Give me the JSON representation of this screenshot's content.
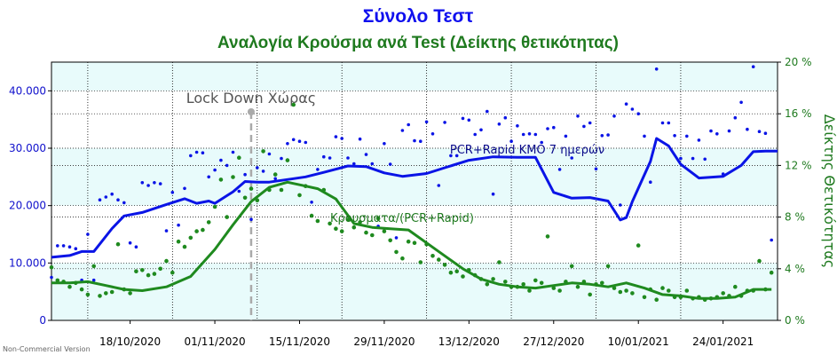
{
  "chart_data": {
    "type": "line",
    "title": "Σύνολο Τεστ",
    "subtitle": "Αναλογία Κρούσμα ανά Test (Δείκτης θετικότητας)",
    "x_range": [
      "2020-10-05",
      "2021-02-02"
    ],
    "x_tick_labels": [
      "18/10/2020",
      "01/11/2020",
      "15/11/2020",
      "29/11/2020",
      "13/12/2020",
      "27/12/2020",
      "10/01/2021",
      "24/01/2021"
    ],
    "y_left": {
      "range": [
        0,
        45000
      ],
      "tick_labels": [
        "0",
        "10.000",
        "20.000",
        "30.000",
        "40.000"
      ],
      "tick_values": [
        0,
        10000,
        20000,
        30000,
        40000
      ]
    },
    "y_right": {
      "label": "Δείκτης Θετικότητας",
      "range": [
        0,
        20
      ],
      "tick_labels": [
        "0 %",
        "4 %",
        "8 %",
        "12 %",
        "16 %",
        "20 %"
      ],
      "tick_values": [
        0,
        4,
        8,
        12,
        16,
        20
      ]
    },
    "grid": true,
    "colors": {
      "tests": "#0a14e6",
      "positivity": "#1f8a1f",
      "lockdown": "#aaaaaa",
      "band": "#e8fbfb"
    },
    "annotations": {
      "lockdown_label": "Lock Down Χώρας",
      "lockdown_date": "2020-11-07",
      "tests_series_label": "PCR+Rapid ΚΜΟ 7 ημερών",
      "positivity_series_label": "Κρουσματα/(PCR+Rapid)"
    },
    "credit": "Non-Commercial Version",
    "series": [
      {
        "axis": "left",
        "kind": "line",
        "dates": [
          "2020-10-05",
          "2020-10-08",
          "2020-10-10",
          "2020-10-12",
          "2020-10-15",
          "2020-10-17",
          "2020-10-20",
          "2020-10-24",
          "2020-10-27",
          "2020-10-29",
          "2020-10-31",
          "2020-11-01",
          "2020-11-04",
          "2020-11-06",
          "2020-11-08",
          "2020-11-10",
          "2020-11-14",
          "2020-11-16",
          "2020-11-19",
          "2020-11-23",
          "2020-11-26",
          "2020-11-29",
          "2020-12-02",
          "2020-12-06",
          "2020-12-09",
          "2020-12-13",
          "2020-12-17",
          "2020-12-21",
          "2020-12-24",
          "2020-12-27",
          "2020-12-30",
          "2021-01-02",
          "2021-01-05",
          "2021-01-07",
          "2021-01-08",
          "2021-01-09",
          "2021-01-12",
          "2021-01-13",
          "2021-01-15",
          "2021-01-17",
          "2021-01-20",
          "2021-01-24",
          "2021-01-27",
          "2021-01-29",
          "2021-01-31",
          "2021-02-02"
        ],
        "values": [
          11000,
          11300,
          12000,
          12000,
          16000,
          18200,
          18800,
          20200,
          21200,
          20400,
          20800,
          20400,
          22400,
          24200,
          24100,
          24100,
          24700,
          25000,
          25800,
          26900,
          26800,
          25700,
          25100,
          25600,
          26600,
          27900,
          28500,
          28400,
          28400,
          22300,
          21300,
          21400,
          20800,
          17500,
          17900,
          20700,
          27700,
          31700,
          30400,
          27200,
          24800,
          25100,
          27000,
          29400,
          29500,
          29500
        ]
      },
      {
        "axis": "right",
        "kind": "line",
        "dates": [
          "2020-10-05",
          "2020-10-08",
          "2020-10-11",
          "2020-10-14",
          "2020-10-17",
          "2020-10-20",
          "2020-10-24",
          "2020-10-28",
          "2020-11-01",
          "2020-11-04",
          "2020-11-07",
          "2020-11-10",
          "2020-11-13",
          "2020-11-15",
          "2020-11-18",
          "2020-11-21",
          "2020-11-24",
          "2020-11-27",
          "2020-11-30",
          "2020-12-03",
          "2020-12-06",
          "2020-12-09",
          "2020-12-12",
          "2020-12-15",
          "2020-12-18",
          "2020-12-21",
          "2020-12-24",
          "2020-12-27",
          "2020-12-30",
          "2021-01-02",
          "2021-01-05",
          "2021-01-08",
          "2021-01-11",
          "2021-01-14",
          "2021-01-17",
          "2021-01-20",
          "2021-01-23",
          "2021-01-26",
          "2021-01-29",
          "2021-02-01"
        ],
        "values": [
          2.9,
          2.9,
          3.0,
          2.7,
          2.4,
          2.3,
          2.6,
          3.4,
          5.5,
          7.4,
          9.2,
          10.3,
          10.7,
          10.5,
          10.2,
          9.4,
          7.5,
          7.2,
          7.1,
          7.0,
          6.0,
          5.0,
          4.0,
          3.2,
          2.8,
          2.6,
          2.5,
          2.7,
          2.9,
          2.8,
          2.6,
          2.9,
          2.5,
          2.0,
          1.9,
          1.7,
          1.7,
          1.8,
          2.4,
          2.4
        ]
      },
      {
        "axis": "left",
        "kind": "scatter",
        "dates": [
          "2020-10-05",
          "2020-10-06",
          "2020-10-07",
          "2020-10-08",
          "2020-10-09",
          "2020-10-10",
          "2020-10-11",
          "2020-10-12",
          "2020-10-13",
          "2020-10-14",
          "2020-10-15",
          "2020-10-16",
          "2020-10-17",
          "2020-10-18",
          "2020-10-19",
          "2020-10-20",
          "2020-10-21",
          "2020-10-22",
          "2020-10-23",
          "2020-10-24",
          "2020-10-25",
          "2020-10-26",
          "2020-10-27",
          "2020-10-28",
          "2020-10-29",
          "2020-10-30",
          "2020-10-31",
          "2020-11-01",
          "2020-11-02",
          "2020-11-03",
          "2020-11-04",
          "2020-11-05",
          "2020-11-06",
          "2020-11-07",
          "2020-11-08",
          "2020-11-09",
          "2020-11-10",
          "2020-11-11",
          "2020-11-12",
          "2020-11-13",
          "2020-11-14",
          "2020-11-15",
          "2020-11-16",
          "2020-11-17",
          "2020-11-18",
          "2020-11-19",
          "2020-11-20",
          "2020-11-21",
          "2020-11-22",
          "2020-11-23",
          "2020-11-24",
          "2020-11-25",
          "2020-11-26",
          "2020-11-27",
          "2020-11-28",
          "2020-11-29",
          "2020-11-30",
          "2020-12-01",
          "2020-12-02",
          "2020-12-03",
          "2020-12-04",
          "2020-12-05",
          "2020-12-06",
          "2020-12-07",
          "2020-12-08",
          "2020-12-09",
          "2020-12-10",
          "2020-12-11",
          "2020-12-12",
          "2020-12-13",
          "2020-12-14",
          "2020-12-15",
          "2020-12-16",
          "2020-12-17",
          "2020-12-18",
          "2020-12-19",
          "2020-12-20",
          "2020-12-21",
          "2020-12-22",
          "2020-12-23",
          "2020-12-24",
          "2020-12-25",
          "2020-12-26",
          "2020-12-27",
          "2020-12-28",
          "2020-12-29",
          "2020-12-30",
          "2020-12-31",
          "2021-01-01",
          "2021-01-02",
          "2021-01-03",
          "2021-01-04",
          "2021-01-05",
          "2021-01-06",
          "2021-01-07",
          "2021-01-08",
          "2021-01-09",
          "2021-01-10",
          "2021-01-11",
          "2021-01-12",
          "2021-01-13",
          "2021-01-14",
          "2021-01-15",
          "2021-01-16",
          "2021-01-17",
          "2021-01-18",
          "2021-01-19",
          "2021-01-20",
          "2021-01-21",
          "2021-01-22",
          "2021-01-23",
          "2021-01-24",
          "2021-01-25",
          "2021-01-26",
          "2021-01-27",
          "2021-01-28",
          "2021-01-29",
          "2021-01-30",
          "2021-01-31",
          "2021-02-01"
        ],
        "values": [
          7500,
          13000,
          13000,
          12800,
          12500,
          7000,
          15000,
          7000,
          21000,
          21500,
          22000,
          21000,
          20500,
          13500,
          12800,
          24000,
          23500,
          24000,
          23800,
          15600,
          22300,
          16600,
          23000,
          28700,
          29300,
          29200,
          25000,
          26200,
          27900,
          27000,
          29300,
          22500,
          25400,
          17600,
          26600,
          26000,
          29000,
          24700,
          28200,
          30800,
          31500,
          31200,
          31000,
          20600,
          26300,
          28500,
          28300,
          32000,
          31700,
          28300,
          27300,
          31600,
          28900,
          27300,
          16400,
          30800,
          27200,
          14400,
          33100,
          34100,
          31300,
          31200,
          34600,
          32500,
          23500,
          34500,
          28700,
          28700,
          35200,
          34900,
          32400,
          33200,
          36400,
          22000,
          34200,
          35300,
          31200,
          33900,
          32400,
          32500,
          32400,
          31000,
          33400,
          33600,
          26300,
          32100,
          28300,
          35600,
          33800,
          34400,
          26400,
          32200,
          32300,
          35600,
          20100,
          37700,
          36800,
          36000,
          32100,
          24100,
          43800,
          34400,
          34400,
          32200,
          28200,
          32100,
          28200,
          31400,
          28100,
          33000,
          32500,
          25500,
          33000,
          35300,
          38000,
          33300,
          44200,
          32900,
          32600,
          14000
        ]
      },
      {
        "axis": "right",
        "kind": "scatter",
        "dates": [
          "2020-10-05",
          "2020-10-06",
          "2020-10-07",
          "2020-10-08",
          "2020-10-09",
          "2020-10-10",
          "2020-10-11",
          "2020-10-12",
          "2020-10-13",
          "2020-10-14",
          "2020-10-15",
          "2020-10-16",
          "2020-10-17",
          "2020-10-18",
          "2020-10-19",
          "2020-10-20",
          "2020-10-21",
          "2020-10-22",
          "2020-10-23",
          "2020-10-24",
          "2020-10-25",
          "2020-10-26",
          "2020-10-27",
          "2020-10-28",
          "2020-10-29",
          "2020-10-30",
          "2020-10-31",
          "2020-11-01",
          "2020-11-02",
          "2020-11-03",
          "2020-11-04",
          "2020-11-05",
          "2020-11-06",
          "2020-11-07",
          "2020-11-08",
          "2020-11-09",
          "2020-11-10",
          "2020-11-11",
          "2020-11-12",
          "2020-11-13",
          "2020-11-14",
          "2020-11-15",
          "2020-11-16",
          "2020-11-17",
          "2020-11-18",
          "2020-11-19",
          "2020-11-20",
          "2020-11-21",
          "2020-11-22",
          "2020-11-23",
          "2020-11-24",
          "2020-11-25",
          "2020-11-26",
          "2020-11-27",
          "2020-11-28",
          "2020-11-29",
          "2020-11-30",
          "2020-12-01",
          "2020-12-02",
          "2020-12-03",
          "2020-12-04",
          "2020-12-05",
          "2020-12-06",
          "2020-12-07",
          "2020-12-08",
          "2020-12-09",
          "2020-12-10",
          "2020-12-11",
          "2020-12-12",
          "2020-12-13",
          "2020-12-14",
          "2020-12-15",
          "2020-12-16",
          "2020-12-17",
          "2020-12-18",
          "2020-12-19",
          "2020-12-20",
          "2020-12-21",
          "2020-12-22",
          "2020-12-23",
          "2020-12-24",
          "2020-12-25",
          "2020-12-26",
          "2020-12-27",
          "2020-12-28",
          "2020-12-29",
          "2020-12-30",
          "2020-12-31",
          "2021-01-01",
          "2021-01-02",
          "2021-01-03",
          "2021-01-04",
          "2021-01-05",
          "2021-01-06",
          "2021-01-07",
          "2021-01-08",
          "2021-01-09",
          "2021-01-10",
          "2021-01-11",
          "2021-01-12",
          "2021-01-13",
          "2021-01-14",
          "2021-01-15",
          "2021-01-16",
          "2021-01-17",
          "2021-01-18",
          "2021-01-19",
          "2021-01-20",
          "2021-01-21",
          "2021-01-22",
          "2021-01-23",
          "2021-01-24",
          "2021-01-25",
          "2021-01-26",
          "2021-01-27",
          "2021-01-28",
          "2021-01-29",
          "2021-01-30",
          "2021-01-31",
          "2021-02-01"
        ],
        "values": [
          4.1,
          3.1,
          3.0,
          2.6,
          2.9,
          2.4,
          2.0,
          4.2,
          1.9,
          2.1,
          2.2,
          5.9,
          2.4,
          2.1,
          3.8,
          3.9,
          3.5,
          3.6,
          4.0,
          4.6,
          3.7,
          6.1,
          5.7,
          6.4,
          6.9,
          7.0,
          7.6,
          8.8,
          10.9,
          8.0,
          11.1,
          12.6,
          9.5,
          10.2,
          9.3,
          13.1,
          10.1,
          11.3,
          10.1,
          12.4,
          16.7,
          9.7,
          10.4,
          8.1,
          7.7,
          10.1,
          7.5,
          7.1,
          6.9,
          7.8,
          7.2,
          7.6,
          6.8,
          6.6,
          7.9,
          6.9,
          6.2,
          5.3,
          4.8,
          6.1,
          6.0,
          4.5,
          5.9,
          5.0,
          4.7,
          4.3,
          3.7,
          3.8,
          3.4,
          3.9,
          3.5,
          3.2,
          2.8,
          3.2,
          4.5,
          3.0,
          2.6,
          2.6,
          2.8,
          2.3,
          3.1,
          2.9,
          6.5,
          2.5,
          2.3,
          3.0,
          4.2,
          2.6,
          3.0,
          2.0,
          2.8,
          2.9,
          4.2,
          2.5,
          2.2,
          2.3,
          2.1,
          5.8,
          1.8,
          2.4,
          1.6,
          2.5,
          2.3,
          1.8,
          1.8,
          2.3,
          1.7,
          1.8,
          1.6,
          1.7,
          1.8,
          2.1,
          1.9,
          2.6,
          1.9,
          2.3,
          2.3,
          4.6,
          2.4,
          3.7
        ]
      }
    ]
  }
}
